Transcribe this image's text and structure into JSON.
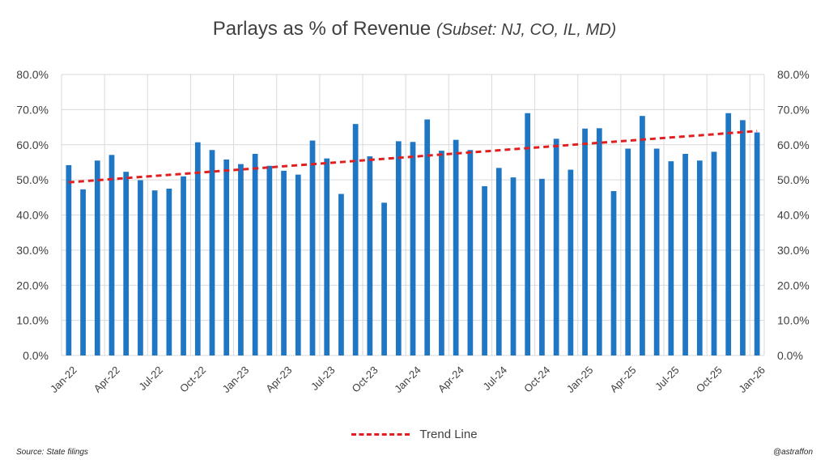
{
  "title": {
    "main": "Parlays as % of Revenue ",
    "subset": "(Subset: NJ, CO, IL, MD)",
    "close": ")"
  },
  "source": "Source: State filings",
  "credit": "@astraffon",
  "colors": {
    "bar": "#1f77c4",
    "trend": "#e02020",
    "grid": "#d9d9d9"
  },
  "chart_data": {
    "type": "bar",
    "title": "Parlays as % of Revenue (Subset: NJ, CO, IL, MD)",
    "xlabel": "",
    "ylabel": "",
    "ylim": [
      0,
      80
    ],
    "y_ticks": [
      "0.0%",
      "10.0%",
      "20.0%",
      "30.0%",
      "40.0%",
      "50.0%",
      "60.0%",
      "70.0%",
      "80.0%"
    ],
    "y_axes": "both sides",
    "grid": true,
    "legend_position": "bottom",
    "categories": [
      "Jan-22",
      "Feb-22",
      "Mar-22",
      "Apr-22",
      "May-22",
      "Jun-22",
      "Jul-22",
      "Aug-22",
      "Sep-22",
      "Oct-22",
      "Nov-22",
      "Dec-22",
      "Jan-23",
      "Feb-23",
      "Mar-23",
      "Apr-23",
      "May-23",
      "Jun-23",
      "Jul-23",
      "Aug-23",
      "Sep-23",
      "Oct-23",
      "Nov-23",
      "Dec-23",
      "Jan-24",
      "Feb-24",
      "Mar-24",
      "Apr-24",
      "May-24",
      "Jun-24",
      "Jul-24",
      "Aug-24",
      "Sep-24",
      "Oct-24",
      "Nov-24",
      "Dec-24",
      "Jan-25",
      "Feb-25",
      "Mar-25",
      "Apr-25",
      "May-25",
      "Jun-25",
      "Jul-25",
      "Aug-25",
      "Sep-25",
      "Oct-25",
      "Nov-25",
      "Dec-25",
      "Jan-26"
    ],
    "x_tick_labels": [
      "Jan-22",
      "Apr-22",
      "Jul-22",
      "Oct-22",
      "Jan-23",
      "Apr-23",
      "Jul-23",
      "Oct-23",
      "Jan-24",
      "Apr-24",
      "Jul-24",
      "Oct-24",
      "Jan-25",
      "Apr-25",
      "Jul-25",
      "Oct-25",
      "Jan-26"
    ],
    "series": [
      {
        "type": "bar",
        "values": [
          54.2,
          47.3,
          55.5,
          57.1,
          52.3,
          49.9,
          47.0,
          47.5,
          51.0,
          60.7,
          58.5,
          55.8,
          54.5,
          57.4,
          54.0,
          52.6,
          51.5,
          61.2,
          56.1,
          46.0,
          65.9,
          56.7,
          43.5,
          61.0,
          60.8,
          67.2,
          58.3,
          61.4,
          58.5,
          48.2,
          53.4,
          50.7,
          69.0,
          50.3,
          61.7,
          52.9,
          64.6,
          64.7,
          46.8,
          58.9,
          68.2,
          58.9,
          55.3,
          57.4,
          55.5,
          58.0,
          69.0,
          67.0,
          63.5
        ]
      },
      {
        "name": "Trend Line",
        "type": "line",
        "style": "dashed",
        "start": 49.3,
        "end": 63.9
      }
    ]
  }
}
